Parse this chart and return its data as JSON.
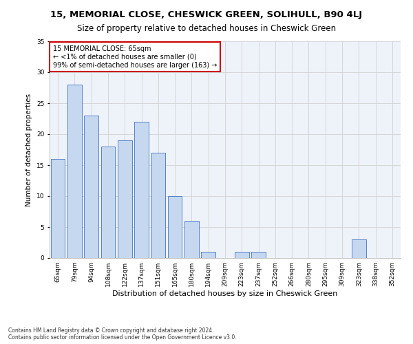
{
  "title": "15, MEMORIAL CLOSE, CHESWICK GREEN, SOLIHULL, B90 4LJ",
  "subtitle": "Size of property relative to detached houses in Cheswick Green",
  "xlabel": "Distribution of detached houses by size in Cheswick Green",
  "ylabel": "Number of detached properties",
  "categories": [
    "65sqm",
    "79sqm",
    "94sqm",
    "108sqm",
    "122sqm",
    "137sqm",
    "151sqm",
    "165sqm",
    "180sqm",
    "194sqm",
    "209sqm",
    "223sqm",
    "237sqm",
    "252sqm",
    "266sqm",
    "280sqm",
    "295sqm",
    "309sqm",
    "323sqm",
    "338sqm",
    "352sqm"
  ],
  "values": [
    16,
    28,
    23,
    18,
    19,
    22,
    17,
    10,
    6,
    1,
    0,
    1,
    1,
    0,
    0,
    0,
    0,
    0,
    3,
    0,
    0
  ],
  "bar_color": "#c5d8f0",
  "bar_edge_color": "#4472c4",
  "annotation_box_text": "15 MEMORIAL CLOSE: 65sqm\n← <1% of detached houses are smaller (0)\n99% of semi-detached houses are larger (163) →",
  "annotation_box_color": "#ffffff",
  "annotation_box_edge_color": "#cc0000",
  "ylim": [
    0,
    35
  ],
  "yticks": [
    0,
    5,
    10,
    15,
    20,
    25,
    30,
    35
  ],
  "bg_color": "#eef2f9",
  "footnote": "Contains HM Land Registry data © Crown copyright and database right 2024.\nContains public sector information licensed under the Open Government Licence v3.0.",
  "title_fontsize": 9.5,
  "subtitle_fontsize": 8.5,
  "xlabel_fontsize": 8,
  "ylabel_fontsize": 7.5,
  "tick_fontsize": 6.5,
  "annotation_fontsize": 7,
  "footnote_fontsize": 5.5
}
